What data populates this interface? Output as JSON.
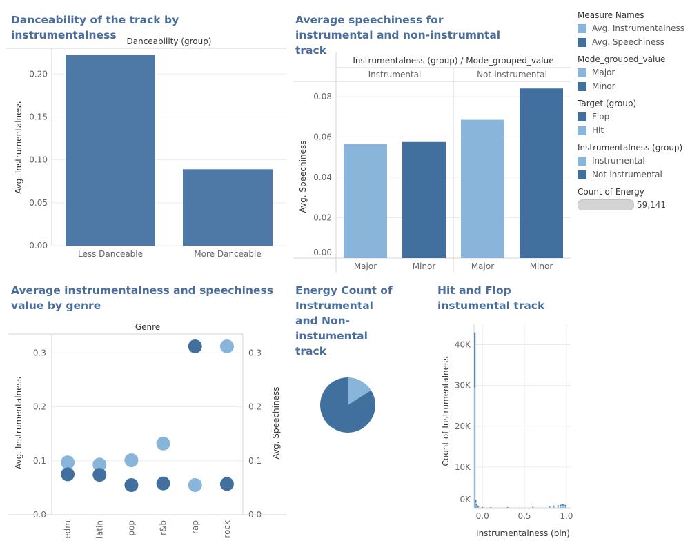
{
  "chart_data": [
    {
      "id": "c1",
      "type": "bar",
      "title": "Danceability of the  track by instrumentalness",
      "header": "Danceability (group)",
      "categories": [
        "Less Danceable",
        "More Danceable"
      ],
      "values": [
        0.222,
        0.089
      ],
      "ylabel": "Avg. Instrumentalness",
      "xlabel": "",
      "ylim": [
        0,
        0.23
      ],
      "yticks": [
        0.0,
        0.05,
        0.1,
        0.15,
        0.2
      ],
      "ytick_labels": [
        "0.00",
        "0.05",
        "0.10",
        "0.15",
        "0.20"
      ],
      "color": "#4e79a7",
      "grid": true
    },
    {
      "id": "c2",
      "type": "bar",
      "title": "Average speechiness for instrumental and non-instrumntal track",
      "header": "Instrumentalness (group)  /  Mode_grouped_value",
      "ylabel": "Avg. Speechiness",
      "xlabel": "",
      "ylim": [
        0,
        0.0875
      ],
      "yticks": [
        0.0,
        0.02,
        0.04,
        0.06,
        0.08
      ],
      "ytick_labels": [
        "0.00",
        "0.02",
        "0.04",
        "0.06",
        "0.08"
      ],
      "grid": true,
      "panels": [
        {
          "name": "Instrumental",
          "bars": [
            {
              "category": "Major",
              "value": 0.0565,
              "color": "#88b5d9"
            },
            {
              "category": "Minor",
              "value": 0.0575,
              "color": "#41709f"
            }
          ]
        },
        {
          "name": "Not-instrumental",
          "bars": [
            {
              "category": "Major",
              "value": 0.0685,
              "color": "#88b5d9"
            },
            {
              "category": "Minor",
              "value": 0.084,
              "color": "#41709f"
            }
          ]
        }
      ]
    },
    {
      "id": "c3",
      "type": "scatter",
      "title": "Average instrumentalness and speechiness value by genre",
      "header": "Genre",
      "categories": [
        "edm",
        "latin",
        "pop",
        "r&b",
        "rap",
        "rock"
      ],
      "ylabel": "Avg. Instrumentalness",
      "y2label": "Avg. Speechiness",
      "xlabel": "",
      "ylim": [
        0,
        0.335
      ],
      "y2lim": [
        0,
        0.335
      ],
      "yticks": [
        0.0,
        0.1,
        0.2,
        0.3
      ],
      "ytick_labels": [
        "0.0",
        "0.1",
        "0.2",
        "0.3"
      ],
      "grid": true,
      "series": [
        {
          "name": "Avg. Instrumentalness",
          "axis": "left",
          "color": "#88b5d9",
          "values": [
            0.097,
            0.093,
            0.101,
            0.132,
            0.055,
            0.312
          ]
        },
        {
          "name": "Avg. Speechiness",
          "axis": "right",
          "color": "#41709f",
          "values": [
            0.075,
            0.074,
            0.055,
            0.058,
            0.312,
            0.057
          ]
        }
      ]
    },
    {
      "id": "c4",
      "type": "pie",
      "title": "Energy Count of Instrumental and Non-instumental track",
      "slices": [
        {
          "name": "Instrumental",
          "value": 0.16,
          "color": "#88b5d9"
        },
        {
          "name": "Not-instrumental",
          "value": 0.84,
          "color": "#41709f"
        }
      ]
    },
    {
      "id": "c5",
      "type": "bar",
      "stacked": true,
      "title": "Hit and Flop instumental track",
      "xlabel": "Instrumentalness (bin)",
      "ylabel": "Count of Instrumentalness",
      "xlim": [
        -0.1,
        1.05
      ],
      "ylim": [
        0,
        45000
      ],
      "xticks": [
        0.0,
        0.5,
        1.0
      ],
      "xtick_labels": [
        "0.0",
        "0.5",
        "1.0"
      ],
      "yticks": [
        0,
        10000,
        20000,
        30000,
        40000
      ],
      "ytick_labels": [
        "0K",
        "10K",
        "20K",
        "30K",
        "40K"
      ],
      "grid": true,
      "bin_width": 0.01,
      "series": [
        {
          "name": "Hit",
          "color": "#88b5d9",
          "x": [
            -0.09,
            -0.08,
            -0.07,
            -0.06,
            -0.05,
            0.0,
            0.1,
            0.3,
            0.6,
            0.8,
            0.85,
            0.9,
            0.93,
            0.95,
            0.97,
            0.99
          ],
          "values": [
            29500,
            1500,
            700,
            450,
            250,
            150,
            100,
            100,
            150,
            250,
            350,
            400,
            450,
            500,
            500,
            400
          ]
        },
        {
          "name": "Flop",
          "color": "#41709f",
          "x": [
            -0.09,
            -0.08,
            -0.07,
            -0.06,
            -0.05,
            0.0,
            0.1,
            0.3,
            0.6,
            0.8,
            0.85,
            0.9,
            0.93,
            0.95,
            0.97,
            0.99
          ],
          "values": [
            13500,
            500,
            300,
            150,
            100,
            50,
            50,
            50,
            100,
            150,
            200,
            250,
            300,
            350,
            350,
            300
          ]
        }
      ]
    }
  ],
  "legend": {
    "groups": [
      {
        "title": "Measure Names",
        "items": [
          {
            "label": "Avg. Instrumentalness",
            "color": "#88b5d9"
          },
          {
            "label": "Avg. Speechiness",
            "color": "#41709f"
          }
        ]
      },
      {
        "title": "Mode_grouped_value",
        "items": [
          {
            "label": "Major",
            "color": "#88b5d9"
          },
          {
            "label": "Minor",
            "color": "#41709f"
          }
        ]
      },
      {
        "title": "Target (group)",
        "items": [
          {
            "label": "Flop",
            "color": "#41709f"
          },
          {
            "label": "Hit",
            "color": "#88b5d9"
          }
        ]
      },
      {
        "title": "Instrumentalness (group)",
        "items": [
          {
            "label": "Instrumental",
            "color": "#88b5d9"
          },
          {
            "label": "Not-instrumental",
            "color": "#41709f"
          }
        ]
      }
    ],
    "count": {
      "title": "Count of Energy",
      "value": "59,141"
    }
  }
}
